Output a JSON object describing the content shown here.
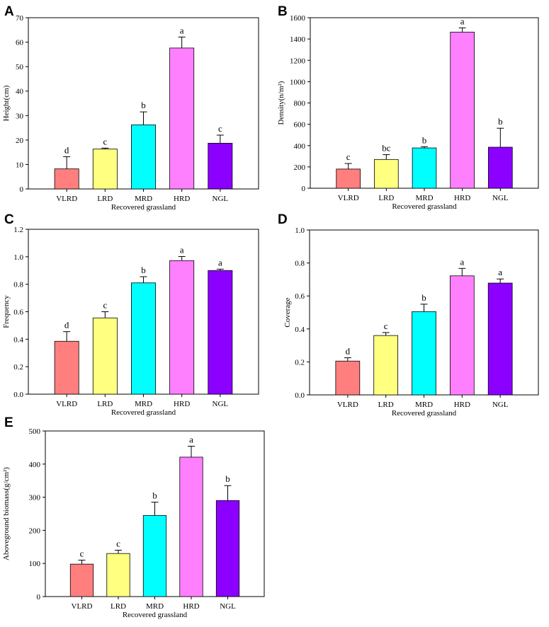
{
  "colors": {
    "VLRD": "#ff7f7f",
    "LRD": "#ffff80",
    "MRD": "#00ffff",
    "HRD": "#ff80ff",
    "NGL": "#8b00ff",
    "axis": "#000000"
  },
  "chart_data": [
    {
      "id": "A",
      "panel": "A",
      "type": "bar",
      "categories": [
        "VLRD",
        "LRD",
        "MRD",
        "HRD",
        "NGL"
      ],
      "values": [
        8.2,
        16.3,
        26.2,
        57.6,
        18.7
      ],
      "errors": [
        5,
        0.4,
        5.3,
        4.5,
        3.3
      ],
      "significance": [
        "d",
        "c",
        "b",
        "a",
        "c"
      ],
      "xlabel": "Recovered grassland",
      "ylabel": "Height(cm)",
      "ylim": [
        0,
        70
      ],
      "yticks": [
        "0",
        "10",
        "20",
        "30",
        "40",
        "50",
        "60",
        "70"
      ],
      "legend": null
    },
    {
      "id": "B",
      "panel": "B",
      "type": "bar",
      "categories": [
        "VLRD",
        "LRD",
        "MRD",
        "HRD",
        "NGL"
      ],
      "values": [
        180,
        270,
        378,
        1465,
        385
      ],
      "errors": [
        52,
        45,
        12,
        40,
        178
      ],
      "significance": [
        "c",
        "bc",
        "b",
        "a",
        "b"
      ],
      "xlabel": "Recovered grassland",
      "ylabel": "Density(n/m²)",
      "ylim": [
        0,
        1600
      ],
      "yticks": [
        "0",
        "200",
        "400",
        "600",
        "800",
        "1000",
        "1200",
        "1400",
        "1600"
      ],
      "legend": null
    },
    {
      "id": "C",
      "panel": "C",
      "type": "bar",
      "categories": [
        "VLRD",
        "LRD",
        "MRD",
        "HRD",
        "NGL"
      ],
      "values": [
        0.385,
        0.555,
        0.81,
        0.972,
        0.9
      ],
      "errors": [
        0.07,
        0.045,
        0.045,
        0.03,
        0.01
      ],
      "significance": [
        "d",
        "c",
        "b",
        "a",
        "a"
      ],
      "xlabel": "Recovered grassland",
      "ylabel": "Frequency",
      "ylim": [
        0,
        1.2
      ],
      "yticks": [
        "0.0",
        "0.2",
        "0.4",
        "0.6",
        "0.8",
        "1.0",
        "1.2"
      ],
      "legend": null
    },
    {
      "id": "D",
      "panel": "D",
      "type": "bar",
      "categories": [
        "VLRD",
        "LRD",
        "MRD",
        "HRD",
        "NGL"
      ],
      "values": [
        0.205,
        0.36,
        0.505,
        0.722,
        0.678
      ],
      "errors": [
        0.02,
        0.018,
        0.045,
        0.045,
        0.025
      ],
      "significance": [
        "d",
        "c",
        "b",
        "a",
        "a"
      ],
      "xlabel": "Recovered grassland",
      "ylabel": "Coverage",
      "ylim": [
        0,
        1.0
      ],
      "yticks": [
        "0.0",
        "0.2",
        "0.4",
        "0.6",
        "0.8",
        "1.0"
      ],
      "legend": null
    },
    {
      "id": "E",
      "panel": "E",
      "type": "bar",
      "categories": [
        "VLRD",
        "LRD",
        "MRD",
        "HRD",
        "NGL"
      ],
      "values": [
        98,
        130,
        245,
        421,
        290
      ],
      "errors": [
        12,
        10,
        40,
        33,
        45
      ],
      "significance": [
        "c",
        "c",
        "b",
        "a",
        "b"
      ],
      "xlabel": "Recovered grassland",
      "ylabel": "Aboveground biomass(g/cm²)",
      "ylim": [
        0,
        500
      ],
      "yticks": [
        "0",
        "100",
        "200",
        "300",
        "400",
        "500"
      ],
      "legend": null
    }
  ]
}
